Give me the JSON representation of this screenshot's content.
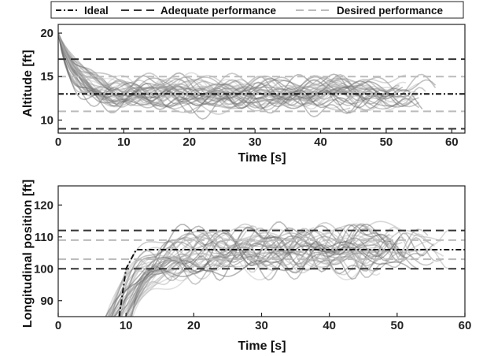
{
  "legend": {
    "entries": [
      {
        "label": "Ideal",
        "style": "dashdot",
        "color": "#111111"
      },
      {
        "label": "Adequate performance",
        "style": "dashed",
        "color": "#333333"
      },
      {
        "label": "Desired performance",
        "style": "dashed",
        "color": "#bbbbbb"
      }
    ]
  },
  "chart_data": [
    {
      "type": "line",
      "xlabel": "Time [s]",
      "ylabel": "Altitude [ft]",
      "xlim": [
        0,
        62
      ],
      "ylim": [
        8.5,
        21
      ],
      "xticks": [
        0,
        10,
        20,
        30,
        40,
        50,
        60
      ],
      "yticks": [
        10,
        15,
        20
      ],
      "grid": false,
      "ideal": {
        "x": [
          0,
          62
        ],
        "y": [
          13,
          13
        ]
      },
      "adequate_bounds": [
        9,
        17
      ],
      "desired_bounds": [
        11,
        15
      ],
      "trials": {
        "count": 40,
        "start": 20,
        "settle": 13,
        "spread": 1.4,
        "end_range": [
          44,
          58
        ]
      }
    },
    {
      "type": "line",
      "xlabel": "Time [s]",
      "ylabel": "Longitudinal position [ft]",
      "xlim": [
        0,
        60
      ],
      "ylim": [
        85,
        126
      ],
      "xticks": [
        0,
        10,
        20,
        30,
        40,
        50,
        60
      ],
      "yticks": [
        90,
        100,
        110,
        120
      ],
      "grid": false,
      "ideal": {
        "x": [
          9,
          10,
          11.5,
          60
        ],
        "y": [
          85,
          100,
          106,
          106
        ]
      },
      "adequate_bounds": [
        100,
        112
      ],
      "desired_bounds": [
        103,
        109
      ],
      "trials": {
        "count": 40,
        "start": 85,
        "settle": 106,
        "spread": 5.5,
        "end_range": [
          46,
          58
        ]
      }
    }
  ]
}
